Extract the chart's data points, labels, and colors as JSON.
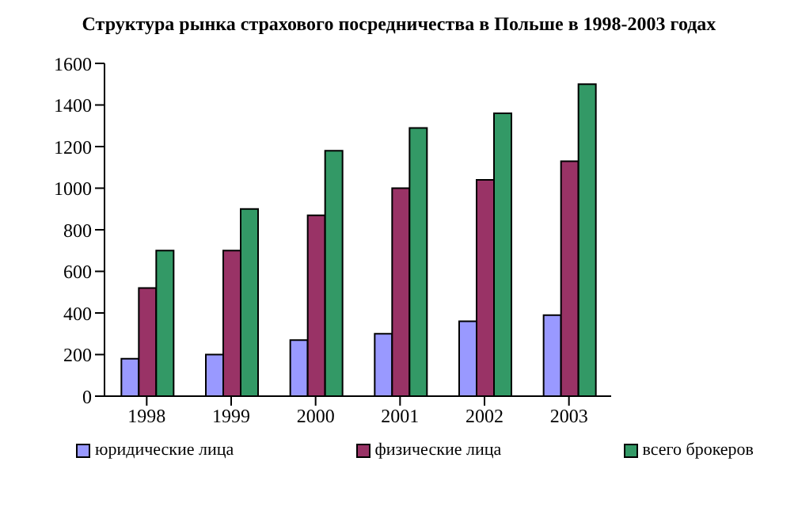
{
  "chart_data": {
    "type": "bar",
    "title": "Структура рынка страхового посредничества в Польше в 1998-2003 годах",
    "categories": [
      "1998",
      "1999",
      "2000",
      "2001",
      "2002",
      "2003"
    ],
    "series": [
      {
        "name": "юридические лица",
        "color": "#9999ff",
        "values": [
          180,
          200,
          270,
          300,
          360,
          390
        ]
      },
      {
        "name": "физические лица",
        "color": "#993366",
        "values": [
          520,
          700,
          870,
          1000,
          1040,
          1130
        ]
      },
      {
        "name": "всего брокеров",
        "color": "#339966",
        "values": [
          700,
          900,
          1180,
          1290,
          1360,
          1500
        ]
      }
    ],
    "ylim": [
      0,
      1600
    ],
    "yticks": [
      0,
      200,
      400,
      600,
      800,
      1000,
      1200,
      1400,
      1600
    ],
    "grid": false,
    "legend": "bottom"
  }
}
